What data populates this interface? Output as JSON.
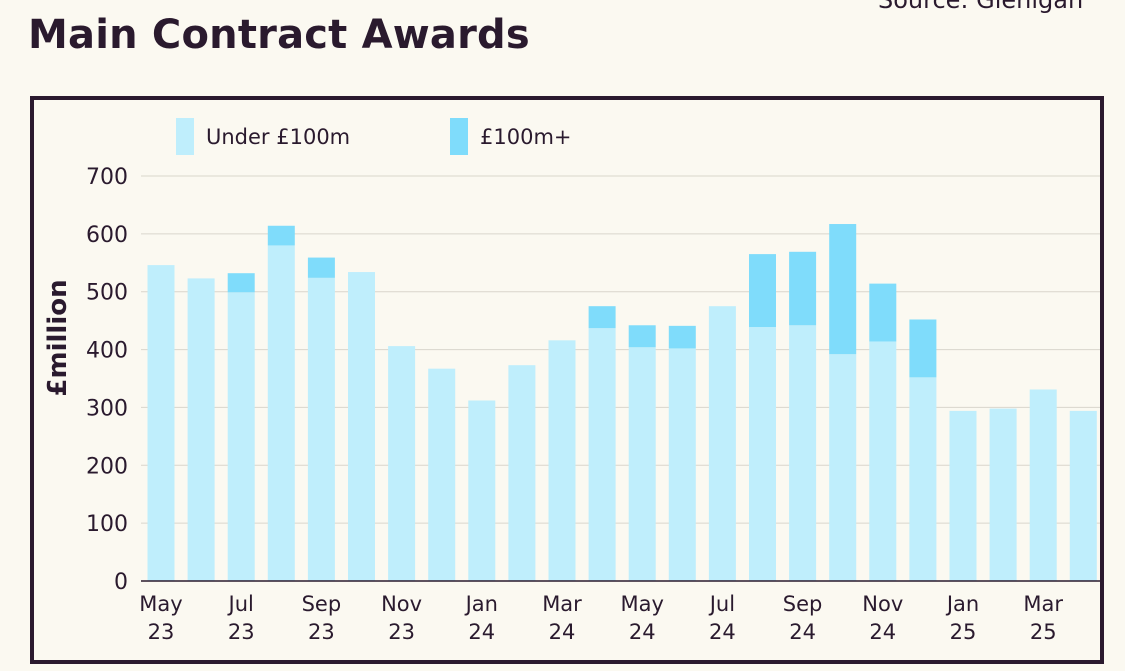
{
  "source": "Source: Glenigan",
  "colors": {
    "under": "#bfeefc",
    "over": "#7fdcfb",
    "grid": "#d9d6cc",
    "axis": "#2a1a2e",
    "frame": "#2b1a2f",
    "background": "#fbf9f1"
  },
  "chart_data": {
    "type": "bar",
    "stacked": true,
    "title": "Main Contract Awards",
    "ylabel": "£million",
    "xlabel": "",
    "ylim": [
      0,
      700
    ],
    "yticks": [
      0,
      100,
      200,
      300,
      400,
      500,
      600,
      700
    ],
    "grid": true,
    "legend": "top-left",
    "categories": [
      "May 23",
      "Jun 23",
      "Jul 23",
      "Aug 23",
      "Sep 23",
      "Oct 23",
      "Nov 23",
      "Dec 23",
      "Jan 24",
      "Feb 24",
      "Mar 24",
      "Apr 24",
      "May 24",
      "Jun 24",
      "Jul 24",
      "Aug 24",
      "Sep 24",
      "Oct 24",
      "Nov 24",
      "Dec 24",
      "Jan 25",
      "Feb 25",
      "Mar 25",
      "Apr 25"
    ],
    "tick_labels": [
      {
        "index": 0,
        "line1": "May",
        "line2": "23"
      },
      {
        "index": 2,
        "line1": "Jul",
        "line2": "23"
      },
      {
        "index": 4,
        "line1": "Sep",
        "line2": "23"
      },
      {
        "index": 6,
        "line1": "Nov",
        "line2": "23"
      },
      {
        "index": 8,
        "line1": "Jan",
        "line2": "24"
      },
      {
        "index": 10,
        "line1": "Mar",
        "line2": "24"
      },
      {
        "index": 12,
        "line1": "May",
        "line2": "24"
      },
      {
        "index": 14,
        "line1": "Jul",
        "line2": "24"
      },
      {
        "index": 16,
        "line1": "Sep",
        "line2": "24"
      },
      {
        "index": 18,
        "line1": "Nov",
        "line2": "24"
      },
      {
        "index": 20,
        "line1": "Jan",
        "line2": "25"
      },
      {
        "index": 22,
        "line1": "Mar",
        "line2": "25"
      }
    ],
    "series": [
      {
        "name": "Under £100m",
        "color": "#bfeefc",
        "values": [
          546,
          523,
          499,
          580,
          524,
          534,
          406,
          367,
          312,
          373,
          416,
          437,
          404,
          402,
          475,
          439,
          442,
          392,
          414,
          352,
          294,
          298,
          331,
          294
        ]
      },
      {
        "name": "£100m+",
        "color": "#7fdcfb",
        "values": [
          0,
          0,
          33,
          34,
          35,
          0,
          0,
          0,
          0,
          0,
          0,
          38,
          38,
          39,
          0,
          126,
          127,
          225,
          100,
          100,
          0,
          0,
          0,
          0
        ]
      }
    ]
  }
}
